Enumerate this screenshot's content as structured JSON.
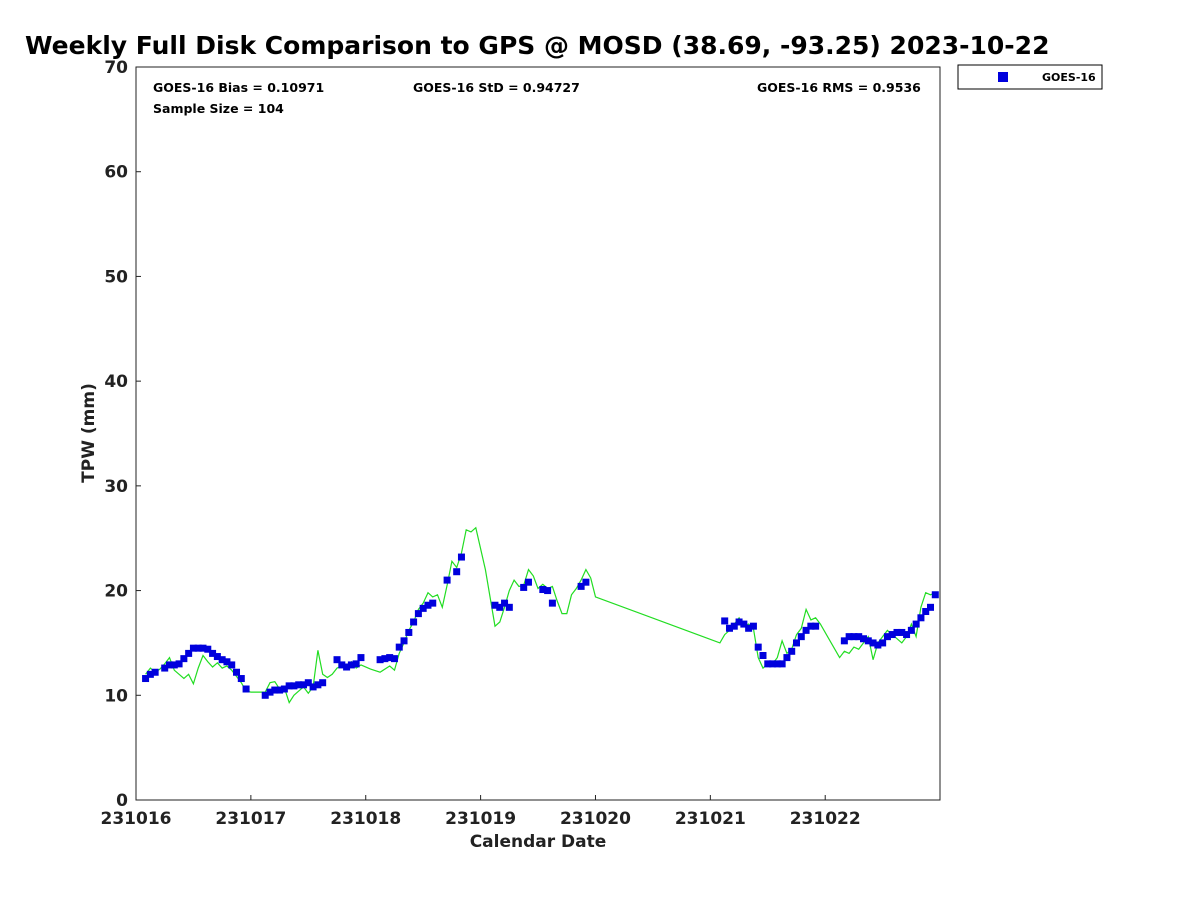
{
  "chart_data": {
    "type": "scatter",
    "title": "Weekly Full Disk Comparison to GPS @ MOSD (38.69, -93.25) 2023-10-22",
    "xlabel": "Calendar Date",
    "ylabel": "TPW (mm)",
    "xlim": [
      "2023-10-16T00:00",
      "2023-10-22T23:59"
    ],
    "ylim": [
      0,
      70
    ],
    "yticks": [
      0,
      10,
      20,
      30,
      40,
      50,
      60,
      70
    ],
    "xticks": [
      {
        "date": "2023-10-16",
        "label": "231016"
      },
      {
        "date": "2023-10-17",
        "label": "231017"
      },
      {
        "date": "2023-10-18",
        "label": "231018"
      },
      {
        "date": "2023-10-19",
        "label": "231019"
      },
      {
        "date": "2023-10-20",
        "label": "231020"
      },
      {
        "date": "2023-10-21",
        "label": "231021"
      },
      {
        "date": "2023-10-22",
        "label": "231022"
      }
    ],
    "grid": false,
    "legend_position": "outside-top-right",
    "stats": {
      "bias": "GOES-16 Bias = 0.10971",
      "std": "GOES-16 StD = 0.94727",
      "rms": "GOES-16 RMS = 0.9536",
      "sample": "Sample Size = 104"
    },
    "colors": {
      "goes": "#0000dd",
      "gps": "#22dd22"
    },
    "series": [
      {
        "name": "GOES-16",
        "marker": "square",
        "points": [
          [
            "2023-10-16T02:00",
            11.6
          ],
          [
            "2023-10-16T03:00",
            12.0
          ],
          [
            "2023-10-16T04:00",
            12.2
          ],
          [
            "2023-10-16T06:00",
            12.6
          ],
          [
            "2023-10-16T07:00",
            12.9
          ],
          [
            "2023-10-16T08:00",
            12.9
          ],
          [
            "2023-10-16T09:00",
            13.0
          ],
          [
            "2023-10-16T10:00",
            13.5
          ],
          [
            "2023-10-16T11:00",
            14.0
          ],
          [
            "2023-10-16T12:00",
            14.5
          ],
          [
            "2023-10-16T13:00",
            14.5
          ],
          [
            "2023-10-16T14:00",
            14.5
          ],
          [
            "2023-10-16T15:00",
            14.4
          ],
          [
            "2023-10-16T16:00",
            14.0
          ],
          [
            "2023-10-16T17:00",
            13.7
          ],
          [
            "2023-10-16T18:00",
            13.4
          ],
          [
            "2023-10-16T19:00",
            13.2
          ],
          [
            "2023-10-16T20:00",
            12.9
          ],
          [
            "2023-10-16T21:00",
            12.2
          ],
          [
            "2023-10-16T22:00",
            11.6
          ],
          [
            "2023-10-16T23:00",
            10.6
          ],
          [
            "2023-10-17T03:00",
            10.0
          ],
          [
            "2023-10-17T04:00",
            10.3
          ],
          [
            "2023-10-17T05:00",
            10.5
          ],
          [
            "2023-10-17T06:00",
            10.5
          ],
          [
            "2023-10-17T07:00",
            10.6
          ],
          [
            "2023-10-17T08:00",
            10.9
          ],
          [
            "2023-10-17T09:00",
            10.9
          ],
          [
            "2023-10-17T10:00",
            11.0
          ],
          [
            "2023-10-17T11:00",
            11.0
          ],
          [
            "2023-10-17T12:00",
            11.2
          ],
          [
            "2023-10-17T13:00",
            10.8
          ],
          [
            "2023-10-17T14:00",
            11.0
          ],
          [
            "2023-10-17T15:00",
            11.2
          ],
          [
            "2023-10-17T18:00",
            13.4
          ],
          [
            "2023-10-17T19:00",
            12.9
          ],
          [
            "2023-10-17T20:00",
            12.7
          ],
          [
            "2023-10-17T21:00",
            12.9
          ],
          [
            "2023-10-17T22:00",
            13.0
          ],
          [
            "2023-10-17T23:00",
            13.6
          ],
          [
            "2023-10-18T03:00",
            13.4
          ],
          [
            "2023-10-18T04:00",
            13.5
          ],
          [
            "2023-10-18T05:00",
            13.6
          ],
          [
            "2023-10-18T06:00",
            13.5
          ],
          [
            "2023-10-18T07:00",
            14.6
          ],
          [
            "2023-10-18T08:00",
            15.2
          ],
          [
            "2023-10-18T09:00",
            16.0
          ],
          [
            "2023-10-18T10:00",
            17.0
          ],
          [
            "2023-10-18T11:00",
            17.8
          ],
          [
            "2023-10-18T12:00",
            18.3
          ],
          [
            "2023-10-18T13:00",
            18.6
          ],
          [
            "2023-10-18T14:00",
            18.8
          ],
          [
            "2023-10-18T17:00",
            21.0
          ],
          [
            "2023-10-18T19:00",
            21.8
          ],
          [
            "2023-10-18T20:00",
            23.2
          ],
          [
            "2023-10-19T03:00",
            18.6
          ],
          [
            "2023-10-19T04:00",
            18.4
          ],
          [
            "2023-10-19T05:00",
            18.8
          ],
          [
            "2023-10-19T06:00",
            18.4
          ],
          [
            "2023-10-19T09:00",
            20.3
          ],
          [
            "2023-10-19T10:00",
            20.8
          ],
          [
            "2023-10-19T13:00",
            20.1
          ],
          [
            "2023-10-19T14:00",
            20.0
          ],
          [
            "2023-10-19T15:00",
            18.8
          ],
          [
            "2023-10-19T21:00",
            20.4
          ],
          [
            "2023-10-19T22:00",
            20.8
          ],
          [
            "2023-10-21T03:00",
            17.1
          ],
          [
            "2023-10-21T04:00",
            16.4
          ],
          [
            "2023-10-21T05:00",
            16.6
          ],
          [
            "2023-10-21T06:00",
            17.0
          ],
          [
            "2023-10-21T07:00",
            16.8
          ],
          [
            "2023-10-21T08:00",
            16.4
          ],
          [
            "2023-10-21T09:00",
            16.6
          ],
          [
            "2023-10-21T10:00",
            14.6
          ],
          [
            "2023-10-21T11:00",
            13.8
          ],
          [
            "2023-10-21T12:00",
            13.0
          ],
          [
            "2023-10-21T13:00",
            13.0
          ],
          [
            "2023-10-21T14:00",
            13.0
          ],
          [
            "2023-10-21T15:00",
            13.0
          ],
          [
            "2023-10-21T16:00",
            13.6
          ],
          [
            "2023-10-21T17:00",
            14.2
          ],
          [
            "2023-10-21T18:00",
            15.0
          ],
          [
            "2023-10-21T19:00",
            15.6
          ],
          [
            "2023-10-21T20:00",
            16.2
          ],
          [
            "2023-10-21T21:00",
            16.6
          ],
          [
            "2023-10-21T22:00",
            16.6
          ],
          [
            "2023-10-22T04:00",
            15.2
          ],
          [
            "2023-10-22T05:00",
            15.6
          ],
          [
            "2023-10-22T06:00",
            15.6
          ],
          [
            "2023-10-22T07:00",
            15.6
          ],
          [
            "2023-10-22T08:00",
            15.4
          ],
          [
            "2023-10-22T09:00",
            15.2
          ],
          [
            "2023-10-22T10:00",
            15.0
          ],
          [
            "2023-10-22T11:00",
            14.8
          ],
          [
            "2023-10-22T12:00",
            15.0
          ],
          [
            "2023-10-22T13:00",
            15.6
          ],
          [
            "2023-10-22T14:00",
            15.8
          ],
          [
            "2023-10-22T15:00",
            16.0
          ],
          [
            "2023-10-22T16:00",
            16.0
          ],
          [
            "2023-10-22T17:00",
            15.8
          ],
          [
            "2023-10-22T18:00",
            16.2
          ],
          [
            "2023-10-22T19:00",
            16.8
          ],
          [
            "2023-10-22T20:00",
            17.4
          ],
          [
            "2023-10-22T21:00",
            18.0
          ],
          [
            "2023-10-22T22:00",
            18.4
          ],
          [
            "2023-10-22T23:00",
            19.6
          ]
        ]
      },
      {
        "name": "",
        "marker": "line",
        "points": [
          [
            "2023-10-16T02:00",
            12.0
          ],
          [
            "2023-10-16T03:00",
            12.6
          ],
          [
            "2023-10-16T04:00",
            12.2
          ],
          [
            "2023-10-16T05:00",
            12.5
          ],
          [
            "2023-10-16T06:00",
            13.0
          ],
          [
            "2023-10-16T07:00",
            13.6
          ],
          [
            "2023-10-16T08:00",
            12.4
          ],
          [
            "2023-10-16T09:00",
            12.0
          ],
          [
            "2023-10-16T10:00",
            11.6
          ],
          [
            "2023-10-16T11:00",
            12.0
          ],
          [
            "2023-10-16T12:00",
            11.1
          ],
          [
            "2023-10-16T13:00",
            12.6
          ],
          [
            "2023-10-16T14:00",
            13.8
          ],
          [
            "2023-10-16T15:00",
            13.2
          ],
          [
            "2023-10-16T16:00",
            12.7
          ],
          [
            "2023-10-16T17:00",
            13.1
          ],
          [
            "2023-10-16T18:00",
            12.6
          ],
          [
            "2023-10-16T19:00",
            12.8
          ],
          [
            "2023-10-16T20:00",
            12.4
          ],
          [
            "2023-10-16T21:00",
            11.8
          ],
          [
            "2023-10-16T22:00",
            11.2
          ],
          [
            "2023-10-16T23:00",
            10.4
          ],
          [
            "2023-10-17T00:00",
            10.3
          ],
          [
            "2023-10-17T03:00",
            10.3
          ],
          [
            "2023-10-17T04:00",
            11.2
          ],
          [
            "2023-10-17T05:00",
            11.3
          ],
          [
            "2023-10-17T06:00",
            10.6
          ],
          [
            "2023-10-17T07:00",
            10.7
          ],
          [
            "2023-10-17T08:00",
            9.3
          ],
          [
            "2023-10-17T09:00",
            10.0
          ],
          [
            "2023-10-17T10:00",
            10.4
          ],
          [
            "2023-10-17T11:00",
            10.8
          ],
          [
            "2023-10-17T12:00",
            10.2
          ],
          [
            "2023-10-17T13:00",
            10.8
          ],
          [
            "2023-10-17T14:00",
            14.3
          ],
          [
            "2023-10-17T15:00",
            12.0
          ],
          [
            "2023-10-17T16:00",
            11.7
          ],
          [
            "2023-10-17T17:00",
            12.0
          ],
          [
            "2023-10-17T18:00",
            12.6
          ],
          [
            "2023-10-17T19:00",
            12.8
          ],
          [
            "2023-10-17T20:00",
            12.5
          ],
          [
            "2023-10-17T21:00",
            13.2
          ],
          [
            "2023-10-17T22:00",
            12.6
          ],
          [
            "2023-10-17T23:00",
            12.9
          ],
          [
            "2023-10-18T01:00",
            12.5
          ],
          [
            "2023-10-18T03:00",
            12.2
          ],
          [
            "2023-10-18T05:00",
            12.8
          ],
          [
            "2023-10-18T06:00",
            12.4
          ],
          [
            "2023-10-18T07:00",
            14.0
          ],
          [
            "2023-10-18T08:00",
            15.0
          ],
          [
            "2023-10-18T09:00",
            16.2
          ],
          [
            "2023-10-18T10:00",
            17.0
          ],
          [
            "2023-10-18T11:00",
            18.2
          ],
          [
            "2023-10-18T12:00",
            18.8
          ],
          [
            "2023-10-18T13:00",
            19.8
          ],
          [
            "2023-10-18T14:00",
            19.4
          ],
          [
            "2023-10-18T15:00",
            19.6
          ],
          [
            "2023-10-18T16:00",
            18.4
          ],
          [
            "2023-10-18T17:00",
            20.5
          ],
          [
            "2023-10-18T18:00",
            22.8
          ],
          [
            "2023-10-18T19:00",
            22.2
          ],
          [
            "2023-10-18T20:00",
            23.6
          ],
          [
            "2023-10-18T21:00",
            25.8
          ],
          [
            "2023-10-18T22:00",
            25.6
          ],
          [
            "2023-10-18T23:00",
            26.0
          ],
          [
            "2023-10-19T01:00",
            22.0
          ],
          [
            "2023-10-19T03:00",
            16.6
          ],
          [
            "2023-10-19T04:00",
            17.0
          ],
          [
            "2023-10-19T05:00",
            18.4
          ],
          [
            "2023-10-19T06:00",
            20.0
          ],
          [
            "2023-10-19T07:00",
            21.0
          ],
          [
            "2023-10-19T08:00",
            20.4
          ],
          [
            "2023-10-19T09:00",
            20.5
          ],
          [
            "2023-10-19T10:00",
            22.0
          ],
          [
            "2023-10-19T11:00",
            21.4
          ],
          [
            "2023-10-19T12:00",
            20.2
          ],
          [
            "2023-10-19T13:00",
            20.6
          ],
          [
            "2023-10-19T14:00",
            20.2
          ],
          [
            "2023-10-19T15:00",
            20.4
          ],
          [
            "2023-10-19T16:00",
            19.0
          ],
          [
            "2023-10-19T17:00",
            17.8
          ],
          [
            "2023-10-19T18:00",
            17.8
          ],
          [
            "2023-10-19T19:00",
            19.6
          ],
          [
            "2023-10-19T20:00",
            20.2
          ],
          [
            "2023-10-19T21:00",
            21.0
          ],
          [
            "2023-10-19T22:00",
            22.0
          ],
          [
            "2023-10-19T23:00",
            21.2
          ],
          [
            "2023-10-20T00:00",
            19.4
          ],
          [
            "2023-10-21T02:00",
            15.0
          ],
          [
            "2023-10-21T03:00",
            15.8
          ],
          [
            "2023-10-21T04:00",
            16.2
          ],
          [
            "2023-10-21T05:00",
            16.8
          ],
          [
            "2023-10-21T06:00",
            17.4
          ],
          [
            "2023-10-21T07:00",
            16.6
          ],
          [
            "2023-10-21T08:00",
            16.8
          ],
          [
            "2023-10-21T09:00",
            16.4
          ],
          [
            "2023-10-21T10:00",
            13.6
          ],
          [
            "2023-10-21T11:00",
            12.6
          ],
          [
            "2023-10-21T12:00",
            13.0
          ],
          [
            "2023-10-21T13:00",
            13.0
          ],
          [
            "2023-10-21T14:00",
            13.6
          ],
          [
            "2023-10-21T15:00",
            15.2
          ],
          [
            "2023-10-21T16:00",
            14.0
          ],
          [
            "2023-10-21T17:00",
            14.4
          ],
          [
            "2023-10-21T18:00",
            15.8
          ],
          [
            "2023-10-21T19:00",
            16.4
          ],
          [
            "2023-10-21T20:00",
            18.2
          ],
          [
            "2023-10-21T21:00",
            17.2
          ],
          [
            "2023-10-21T22:00",
            17.4
          ],
          [
            "2023-10-21T23:00",
            16.8
          ],
          [
            "2023-10-22T03:00",
            13.6
          ],
          [
            "2023-10-22T04:00",
            14.2
          ],
          [
            "2023-10-22T05:00",
            14.0
          ],
          [
            "2023-10-22T06:00",
            14.6
          ],
          [
            "2023-10-22T07:00",
            14.4
          ],
          [
            "2023-10-22T08:00",
            15.0
          ],
          [
            "2023-10-22T09:00",
            15.6
          ],
          [
            "2023-10-22T10:00",
            13.4
          ],
          [
            "2023-10-22T11:00",
            15.0
          ],
          [
            "2023-10-22T12:00",
            15.6
          ],
          [
            "2023-10-22T13:00",
            16.2
          ],
          [
            "2023-10-22T14:00",
            15.8
          ],
          [
            "2023-10-22T15:00",
            15.4
          ],
          [
            "2023-10-22T16:00",
            15.0
          ],
          [
            "2023-10-22T17:00",
            15.6
          ],
          [
            "2023-10-22T18:00",
            16.8
          ],
          [
            "2023-10-22T19:00",
            15.6
          ],
          [
            "2023-10-22T20:00",
            18.4
          ],
          [
            "2023-10-22T21:00",
            19.8
          ],
          [
            "2023-10-22T22:00",
            19.6
          ],
          [
            "2023-10-22T23:00",
            19.8
          ]
        ]
      }
    ]
  }
}
